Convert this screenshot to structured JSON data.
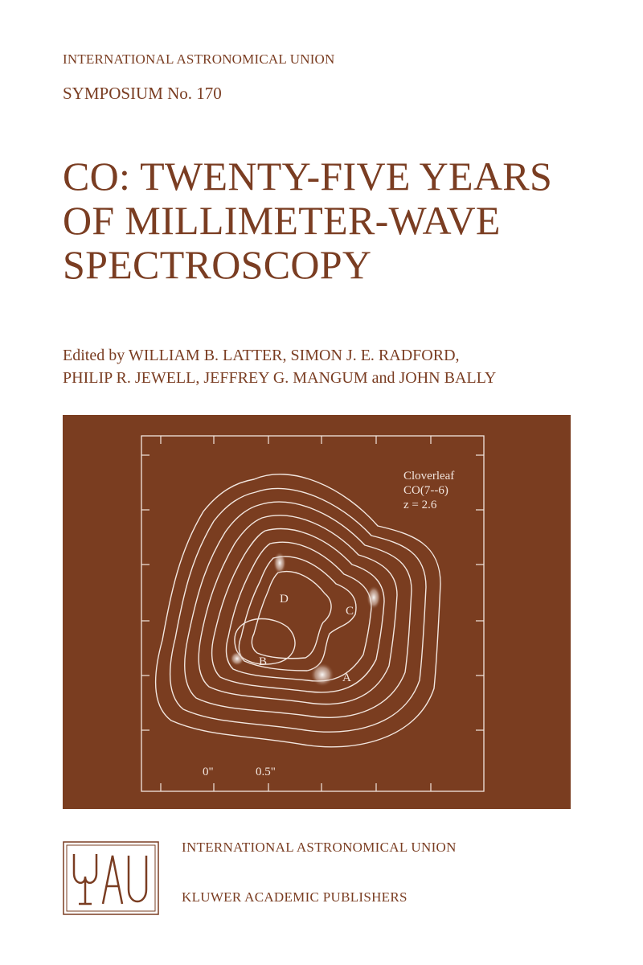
{
  "series": {
    "organization": "INTERNATIONAL ASTRONOMICAL UNION",
    "symposium": "SYMPOSIUM No. 170"
  },
  "title": {
    "line1": "CO: TWENTY-FIVE YEARS",
    "line2": "OF MILLIMETER-WAVE",
    "line3": "SPECTROSCOPY"
  },
  "editors": {
    "line1": "Edited by WILLIAM B. LATTER, SIMON J. E. RADFORD,",
    "line2": "PHILIP R. JEWELL, JEFFREY G. MANGUM and JOHN BALLY"
  },
  "figure": {
    "caption_name": "Cloverleaf",
    "caption_line": "CO(7--6)",
    "caption_z": "z = 2.6",
    "image_labels": [
      "A",
      "B",
      "C",
      "D"
    ],
    "scale_left": "0\"",
    "scale_right": "0.5\""
  },
  "logo": {
    "text": "IAU"
  },
  "publisher": {
    "organization": "INTERNATIONAL ASTRONOMICAL UNION",
    "name": "KLUWER ACADEMIC PUBLISHERS"
  },
  "colors": {
    "text": "#7a3d22",
    "panel": "#7a3d20",
    "lines": "#f2e6df"
  }
}
